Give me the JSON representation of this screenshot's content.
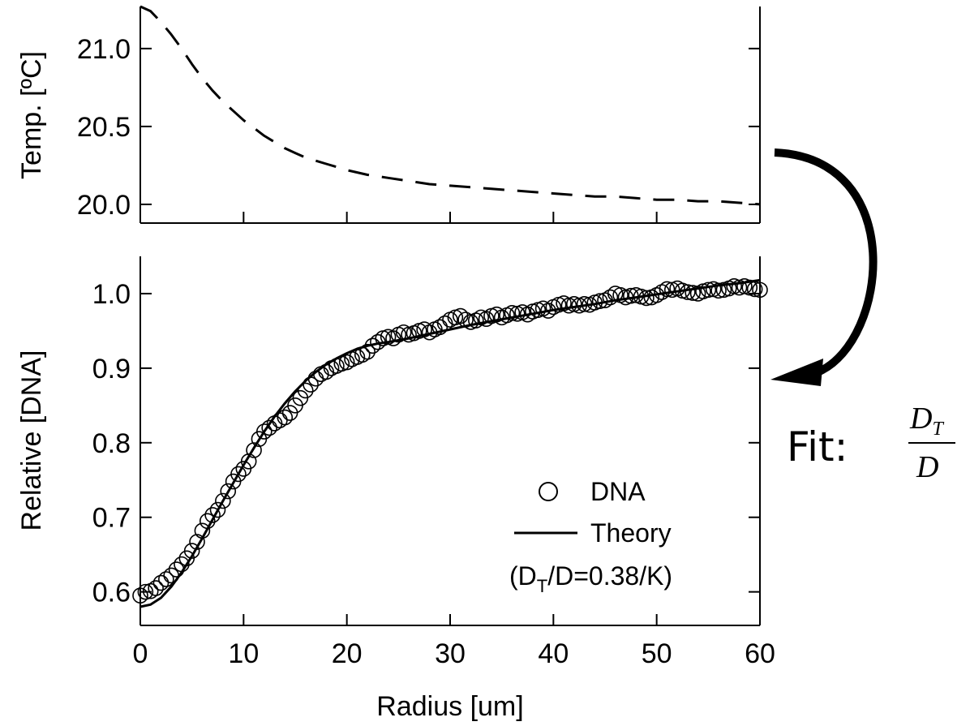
{
  "chart_data": [
    {
      "panel": "top",
      "type": "line",
      "xlabel": "",
      "ylabel": "Temp. [ºC]",
      "xlim": [
        0,
        60
      ],
      "ylim": [
        19.88,
        21.27
      ],
      "yticks": [
        20.0,
        20.5,
        21.0
      ],
      "ytick_labels": [
        "20.0",
        "20.5",
        "21.0"
      ],
      "xticks": [
        0,
        10,
        20,
        30,
        40,
        50,
        60
      ],
      "grid": false,
      "series": [
        {
          "line_style": "dashed",
          "color": "#000000",
          "x": [
            0,
            1,
            2,
            3,
            4,
            5,
            6,
            7,
            8,
            9,
            10,
            11,
            12,
            13,
            14,
            15,
            16,
            17,
            18,
            19,
            20,
            22,
            24,
            26,
            28,
            30,
            32,
            34,
            36,
            38,
            40,
            42,
            44,
            46,
            48,
            50,
            52,
            54,
            56,
            58,
            60
          ],
          "y": [
            21.27,
            21.24,
            21.17,
            21.09,
            21.0,
            20.9,
            20.81,
            20.73,
            20.66,
            20.6,
            20.54,
            20.49,
            20.44,
            20.4,
            20.36,
            20.33,
            20.3,
            20.28,
            20.26,
            20.24,
            20.22,
            20.19,
            20.17,
            20.15,
            20.13,
            20.12,
            20.11,
            20.1,
            20.09,
            20.08,
            20.07,
            20.06,
            20.05,
            20.05,
            20.04,
            20.03,
            20.03,
            20.02,
            20.02,
            20.01,
            20.0
          ]
        }
      ]
    },
    {
      "panel": "bottom",
      "type": "scatter",
      "xlabel": "Radius [um]",
      "ylabel": "Relative [DNA]",
      "xlim": [
        0,
        60
      ],
      "ylim": [
        0.555,
        1.05
      ],
      "xticks": [
        0,
        10,
        20,
        30,
        40,
        50,
        60
      ],
      "xtick_labels": [
        "0",
        "10",
        "20",
        "30",
        "40",
        "50",
        "60"
      ],
      "yticks": [
        0.6,
        0.7,
        0.8,
        0.9,
        1.0
      ],
      "ytick_labels": [
        "0.6",
        "0.7",
        "0.8",
        "0.9",
        "1.0"
      ],
      "grid": false,
      "legend_position": "bottom-right",
      "series": [
        {
          "name": "DNA",
          "marker": "open-circle",
          "color": "#000000",
          "x": [
            0.0,
            0.5,
            1.0,
            1.5,
            2.0,
            2.5,
            3.0,
            3.5,
            4.0,
            4.5,
            5.0,
            5.5,
            6.0,
            6.5,
            7.0,
            7.5,
            8.0,
            8.5,
            9.0,
            9.5,
            10.0,
            10.5,
            11.0,
            11.5,
            12.0,
            12.5,
            13.0,
            13.5,
            14.0,
            14.5,
            15.0,
            15.5,
            16.0,
            16.5,
            17.0,
            17.5,
            18.0,
            18.5,
            19.0,
            19.5,
            20.0,
            20.5,
            21.0,
            21.5,
            22.0,
            22.5,
            23.0,
            23.5,
            24.0,
            24.5,
            25.0,
            25.5,
            26.0,
            26.5,
            27.0,
            27.5,
            28.0,
            28.5,
            29.0,
            29.5,
            30.0,
            30.5,
            31.0,
            31.5,
            32.0,
            32.5,
            33.0,
            33.5,
            34.0,
            34.5,
            35.0,
            35.5,
            36.0,
            36.5,
            37.0,
            37.5,
            38.0,
            38.5,
            39.0,
            39.5,
            40.0,
            40.5,
            41.0,
            41.5,
            42.0,
            42.5,
            43.0,
            43.5,
            44.0,
            44.5,
            45.0,
            45.5,
            46.0,
            46.5,
            47.0,
            47.5,
            48.0,
            48.5,
            49.0,
            49.5,
            50.0,
            50.5,
            51.0,
            51.5,
            52.0,
            52.5,
            53.0,
            53.5,
            54.0,
            54.5,
            55.0,
            55.5,
            56.0,
            56.5,
            57.0,
            57.5,
            58.0,
            58.5,
            59.0,
            59.5,
            60.0
          ],
          "y": [
            0.595,
            0.6,
            0.601,
            0.605,
            0.612,
            0.617,
            0.622,
            0.63,
            0.637,
            0.645,
            0.655,
            0.667,
            0.682,
            0.695,
            0.703,
            0.71,
            0.722,
            0.735,
            0.748,
            0.758,
            0.765,
            0.775,
            0.79,
            0.805,
            0.815,
            0.82,
            0.826,
            0.83,
            0.834,
            0.84,
            0.85,
            0.86,
            0.87,
            0.878,
            0.886,
            0.892,
            0.895,
            0.9,
            0.903,
            0.906,
            0.908,
            0.912,
            0.915,
            0.918,
            0.922,
            0.93,
            0.935,
            0.94,
            0.942,
            0.94,
            0.945,
            0.948,
            0.945,
            0.947,
            0.95,
            0.952,
            0.948,
            0.952,
            0.955,
            0.96,
            0.965,
            0.968,
            0.97,
            0.965,
            0.962,
            0.964,
            0.968,
            0.966,
            0.97,
            0.972,
            0.968,
            0.971,
            0.974,
            0.973,
            0.975,
            0.972,
            0.976,
            0.978,
            0.98,
            0.977,
            0.982,
            0.985,
            0.987,
            0.984,
            0.986,
            0.984,
            0.986,
            0.985,
            0.988,
            0.99,
            0.991,
            0.995,
            1.0,
            0.998,
            0.995,
            0.997,
            0.998,
            0.996,
            0.994,
            0.995,
            0.998,
            1.002,
            1.006,
            1.005,
            1.007,
            1.004,
            1.002,
            1.001,
            1.0,
            1.003,
            1.005,
            1.006,
            1.004,
            1.005,
            1.007,
            1.01,
            1.008,
            1.01,
            1.008,
            1.006,
            1.005
          ]
        },
        {
          "name": "Theory",
          "line_style": "solid",
          "color": "#000000",
          "x": [
            0,
            1,
            2,
            3,
            4,
            5,
            6,
            7,
            8,
            9,
            10,
            11,
            12,
            13,
            14,
            15,
            16,
            17,
            18,
            19,
            20,
            21,
            22,
            23,
            24,
            26,
            28,
            30,
            32,
            34,
            36,
            38,
            40,
            42,
            44,
            46,
            48,
            50,
            52,
            54,
            56,
            58,
            60
          ],
          "y": [
            0.58,
            0.583,
            0.592,
            0.607,
            0.626,
            0.648,
            0.672,
            0.697,
            0.722,
            0.746,
            0.77,
            0.793,
            0.815,
            0.835,
            0.853,
            0.869,
            0.883,
            0.895,
            0.905,
            0.913,
            0.92,
            0.926,
            0.93,
            0.933,
            0.935,
            0.94,
            0.946,
            0.952,
            0.958,
            0.963,
            0.968,
            0.973,
            0.978,
            0.982,
            0.986,
            0.991,
            0.995,
            0.999,
            1.003,
            1.007,
            1.011,
            1.014,
            1.018
          ]
        }
      ],
      "legend": {
        "entries": [
          "DNA",
          "Theory"
        ],
        "note_prefix": "(D",
        "note_sub": "T",
        "note_suffix": "/D=0.38/K)"
      }
    }
  ],
  "annotation": {
    "fit_label": "Fit:",
    "fraction_numerator": "D",
    "fraction_numerator_sub": "T",
    "fraction_denominator": "D",
    "arrow_color": "#000000"
  }
}
